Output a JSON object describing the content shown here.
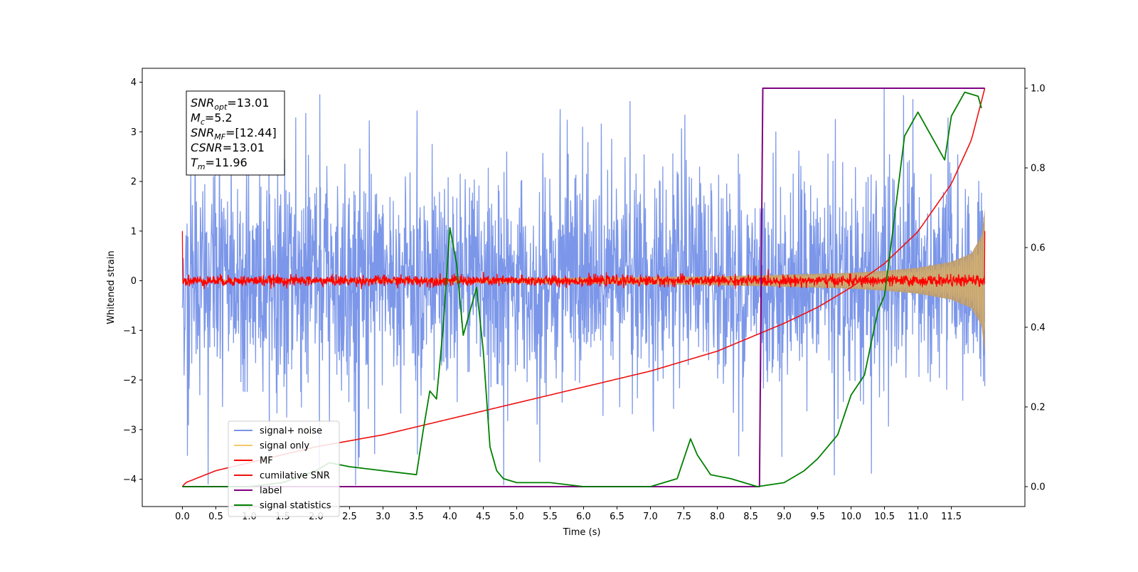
{
  "chart_data": {
    "type": "line",
    "xlabel": "Time (s)",
    "ylabel": "Whitened strain",
    "xlim": [
      -0.6,
      12.6
    ],
    "ylim": [
      -4.55,
      4.28
    ],
    "y2lim": [
      -0.05,
      1.05
    ],
    "x_ticks": [
      0.0,
      0.5,
      1.0,
      1.5,
      2.0,
      2.5,
      3.0,
      3.5,
      4.0,
      4.5,
      5.0,
      5.5,
      6.0,
      6.5,
      7.0,
      7.5,
      8.0,
      8.5,
      9.0,
      9.5,
      10.0,
      10.5,
      11.0,
      11.5
    ],
    "x_tick_labels": [
      "0.0",
      "0.5",
      "1.0",
      "1.5",
      "2.0",
      "2.5",
      "3.0",
      "3.5",
      "4.0",
      "4.5",
      "5.0",
      "5.5",
      "6.0",
      "6.5",
      "7.0",
      "7.5",
      "8.0",
      "8.5",
      "9.0",
      "9.5",
      "10.0",
      "10.5",
      "11.0",
      "11.5"
    ],
    "y_ticks": [
      -4,
      -3,
      -2,
      -1,
      0,
      1,
      2,
      3,
      4
    ],
    "y_tick_labels": [
      "−4",
      "−3",
      "−2",
      "−1",
      "0",
      "1",
      "2",
      "3",
      "4"
    ],
    "y2_ticks": [
      0.0,
      0.2,
      0.4,
      0.6,
      0.8,
      1.0
    ],
    "y2_tick_labels": [
      "0.0",
      "0.2",
      "0.4",
      "0.6",
      "0.8",
      "1.0"
    ],
    "grid": false,
    "legend_position": "lower-left",
    "annotation": {
      "lines": [
        {
          "var": "SNR",
          "sub": "opt",
          "rest": "=13.01"
        },
        {
          "var": "M",
          "sub": "c",
          "rest": "=5.2"
        },
        {
          "var": "SNR",
          "sub": "MF",
          "rest": "=[12.44]"
        },
        {
          "var": "CSNR",
          "sub": "",
          "rest": "=13.01"
        },
        {
          "var": "T",
          "sub": "m",
          "rest": "=11.96"
        }
      ]
    },
    "series": [
      {
        "name": "signal+ noise",
        "color": "#7894e8",
        "axis": "left",
        "kind": "noise",
        "x_range": [
          0.0,
          12.0
        ],
        "amplitude_range": [
          -4.12,
          3.88
        ]
      },
      {
        "name": "signal only",
        "color": "#f5c96a",
        "axis": "left",
        "kind": "chirp_envelope",
        "x": [
          0.0,
          4.0,
          6.0,
          8.0,
          9.0,
          10.0,
          10.5,
          11.0,
          11.5,
          11.8,
          11.95,
          12.0
        ],
        "envelope": [
          0.02,
          0.04,
          0.06,
          0.09,
          0.12,
          0.16,
          0.2,
          0.26,
          0.38,
          0.55,
          0.9,
          1.45
        ]
      },
      {
        "name": "MF",
        "color": "#ff0000",
        "axis": "left",
        "kind": "noise_band",
        "x_range": [
          0.0,
          12.0
        ],
        "center": 0.0,
        "amplitude": 0.12,
        "endpoints": [
          1.0,
          1.0
        ]
      },
      {
        "name": "cumilative SNR",
        "color": "#ee1111",
        "axis": "right",
        "x": [
          0.0,
          0.05,
          0.2,
          0.5,
          1.0,
          1.5,
          2.0,
          3.0,
          4.0,
          5.0,
          6.0,
          7.0,
          8.0,
          9.0,
          9.5,
          10.0,
          10.5,
          11.0,
          11.5,
          11.8,
          12.0
        ],
        "y": [
          0.0,
          0.01,
          0.02,
          0.04,
          0.06,
          0.08,
          0.1,
          0.13,
          0.17,
          0.21,
          0.25,
          0.29,
          0.34,
          0.41,
          0.45,
          0.5,
          0.56,
          0.64,
          0.76,
          0.87,
          1.0
        ]
      },
      {
        "name": "label",
        "color": "#800080",
        "axis": "right",
        "x": [
          0.0,
          8.63,
          8.68,
          12.0
        ],
        "y": [
          0.0,
          0.0,
          1.0,
          1.0
        ]
      },
      {
        "name": "signal statistics",
        "color": "#008000",
        "axis": "right",
        "x": [
          0.0,
          0.5,
          1.0,
          1.5,
          2.0,
          2.2,
          2.5,
          3.0,
          3.5,
          3.6,
          3.7,
          3.8,
          3.9,
          4.0,
          4.1,
          4.2,
          4.3,
          4.4,
          4.5,
          4.6,
          4.7,
          4.8,
          5.0,
          5.5,
          6.0,
          6.5,
          7.0,
          7.4,
          7.6,
          7.7,
          7.9,
          8.2,
          8.6,
          9.0,
          9.3,
          9.5,
          9.8,
          10.0,
          10.2,
          10.4,
          10.5,
          10.6,
          10.8,
          11.0,
          11.2,
          11.4,
          11.5,
          11.7,
          11.9,
          11.95
        ],
        "y": [
          0.0,
          0.0,
          0.0,
          0.01,
          0.04,
          0.06,
          0.05,
          0.04,
          0.03,
          0.14,
          0.24,
          0.22,
          0.4,
          0.65,
          0.56,
          0.38,
          0.44,
          0.5,
          0.34,
          0.1,
          0.04,
          0.02,
          0.01,
          0.01,
          0.0,
          0.0,
          0.0,
          0.02,
          0.12,
          0.08,
          0.03,
          0.02,
          0.0,
          0.01,
          0.04,
          0.07,
          0.13,
          0.23,
          0.28,
          0.44,
          0.48,
          0.61,
          0.88,
          0.94,
          0.88,
          0.82,
          0.93,
          0.99,
          0.98,
          0.95
        ]
      }
    ]
  }
}
